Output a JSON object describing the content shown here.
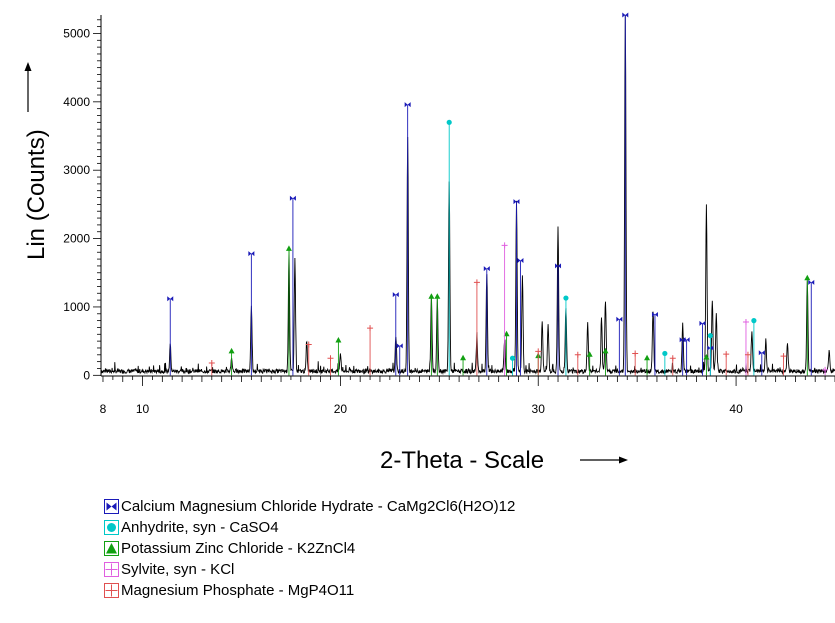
{
  "chart_data": {
    "type": "line",
    "xlabel": "2-Theta - Scale",
    "ylabel": "Lin (Counts)",
    "xlim": [
      7.9,
      45
    ],
    "ylim": [
      -10,
      5270
    ],
    "x_ticks": [
      8,
      10,
      20,
      30,
      40
    ],
    "x_tick_labels": [
      "8",
      "10",
      "20",
      "30",
      "40"
    ],
    "y_ticks": [
      0,
      1000,
      2000,
      3000,
      4000,
      5000
    ],
    "y_tick_labels": [
      "0",
      "1000",
      "2000",
      "3000",
      "4000",
      "5000"
    ],
    "grid": false,
    "legend_position": "bottom-left",
    "pattern": {
      "color": "#000000",
      "baseline": 60,
      "peaks": [
        {
          "x": 11.4,
          "y": 400
        },
        {
          "x": 14.5,
          "y": 200
        },
        {
          "x": 15.5,
          "y": 950
        },
        {
          "x": 17.4,
          "y": 1780
        },
        {
          "x": 17.7,
          "y": 1640
        },
        {
          "x": 18.3,
          "y": 400
        },
        {
          "x": 20.0,
          "y": 250
        },
        {
          "x": 22.8,
          "y": 500
        },
        {
          "x": 23.4,
          "y": 3430
        },
        {
          "x": 24.6,
          "y": 1100
        },
        {
          "x": 24.9,
          "y": 1050
        },
        {
          "x": 25.5,
          "y": 2780
        },
        {
          "x": 26.9,
          "y": 500
        },
        {
          "x": 27.4,
          "y": 1430
        },
        {
          "x": 28.3,
          "y": 450
        },
        {
          "x": 28.9,
          "y": 2490
        },
        {
          "x": 29.2,
          "y": 1400
        },
        {
          "x": 30.2,
          "y": 750
        },
        {
          "x": 30.5,
          "y": 700
        },
        {
          "x": 31.0,
          "y": 2130
        },
        {
          "x": 31.4,
          "y": 950
        },
        {
          "x": 32.5,
          "y": 700
        },
        {
          "x": 33.2,
          "y": 800
        },
        {
          "x": 33.4,
          "y": 1000
        },
        {
          "x": 34.4,
          "y": 5250
        },
        {
          "x": 35.8,
          "y": 850
        },
        {
          "x": 37.3,
          "y": 700
        },
        {
          "x": 38.5,
          "y": 2450
        },
        {
          "x": 38.8,
          "y": 1050
        },
        {
          "x": 39.0,
          "y": 850
        },
        {
          "x": 40.8,
          "y": 600
        },
        {
          "x": 41.5,
          "y": 450
        },
        {
          "x": 42.6,
          "y": 400
        },
        {
          "x": 43.6,
          "y": 1300
        },
        {
          "x": 44.7,
          "y": 300
        }
      ]
    },
    "series": [
      {
        "name": "Calcium Magnesium Chloride Hydrate - CaMg2Cl6(H2O)12",
        "color": "#1a1ab8",
        "marker": "bowtie",
        "show_peak_values": true,
        "sticks": [
          {
            "x": 11.4,
            "y": 1120
          },
          {
            "x": 15.5,
            "y": 1780
          },
          {
            "x": 17.6,
            "y": 2590
          },
          {
            "x": 22.8,
            "y": 1180
          },
          {
            "x": 23.0,
            "y": 430
          },
          {
            "x": 23.4,
            "y": 3960
          },
          {
            "x": 27.4,
            "y": 1560
          },
          {
            "x": 28.9,
            "y": 2540
          },
          {
            "x": 29.1,
            "y": 1680
          },
          {
            "x": 31.0,
            "y": 1600
          },
          {
            "x": 34.1,
            "y": 820
          },
          {
            "x": 34.4,
            "y": 5300
          },
          {
            "x": 35.9,
            "y": 890
          },
          {
            "x": 37.3,
            "y": 520
          },
          {
            "x": 37.5,
            "y": 520
          },
          {
            "x": 38.3,
            "y": 760
          },
          {
            "x": 38.7,
            "y": 400
          },
          {
            "x": 41.3,
            "y": 330
          },
          {
            "x": 43.8,
            "y": 1360
          }
        ]
      },
      {
        "name": "Anhydrite, syn - CaSO4",
        "color": "#00c8c8",
        "marker": "circle",
        "show_peak_values": true,
        "sticks": [
          {
            "x": 25.5,
            "y": 3700
          },
          {
            "x": 28.7,
            "y": 250
          },
          {
            "x": 31.4,
            "y": 1130
          },
          {
            "x": 36.4,
            "y": 320
          },
          {
            "x": 38.7,
            "y": 580
          },
          {
            "x": 40.9,
            "y": 800
          }
        ]
      },
      {
        "name": "Potassium Zinc Chloride - K2ZnCl4",
        "color": "#12a012",
        "marker": "triangle",
        "show_peak_values": true,
        "sticks": [
          {
            "x": 14.5,
            "y": 350
          },
          {
            "x": 17.4,
            "y": 1850
          },
          {
            "x": 19.9,
            "y": 510
          },
          {
            "x": 24.6,
            "y": 1150
          },
          {
            "x": 24.9,
            "y": 1150
          },
          {
            "x": 26.2,
            "y": 250
          },
          {
            "x": 28.4,
            "y": 600
          },
          {
            "x": 30.0,
            "y": 280
          },
          {
            "x": 32.6,
            "y": 300
          },
          {
            "x": 33.4,
            "y": 350
          },
          {
            "x": 35.5,
            "y": 250
          },
          {
            "x": 38.5,
            "y": 260
          },
          {
            "x": 43.6,
            "y": 1420
          }
        ]
      },
      {
        "name": "Sylvite, syn - KCl",
        "color": "#e060e0",
        "marker": "plus",
        "show_peak_values": true,
        "sticks": [
          {
            "x": 28.3,
            "y": 1900
          },
          {
            "x": 40.5,
            "y": 780
          },
          {
            "x": 44.5,
            "y": 80
          }
        ]
      },
      {
        "name": "Magnesium Phosphate - MgP4O11",
        "color": "#e05050",
        "marker": "plus",
        "show_peak_values": true,
        "sticks": [
          {
            "x": 13.5,
            "y": 180
          },
          {
            "x": 18.4,
            "y": 450
          },
          {
            "x": 19.5,
            "y": 250
          },
          {
            "x": 21.5,
            "y": 690
          },
          {
            "x": 26.9,
            "y": 1360
          },
          {
            "x": 30.0,
            "y": 350
          },
          {
            "x": 32.0,
            "y": 300
          },
          {
            "x": 34.9,
            "y": 320
          },
          {
            "x": 36.8,
            "y": 250
          },
          {
            "x": 39.5,
            "y": 310
          },
          {
            "x": 40.6,
            "y": 300
          },
          {
            "x": 42.4,
            "y": 280
          }
        ]
      }
    ]
  }
}
